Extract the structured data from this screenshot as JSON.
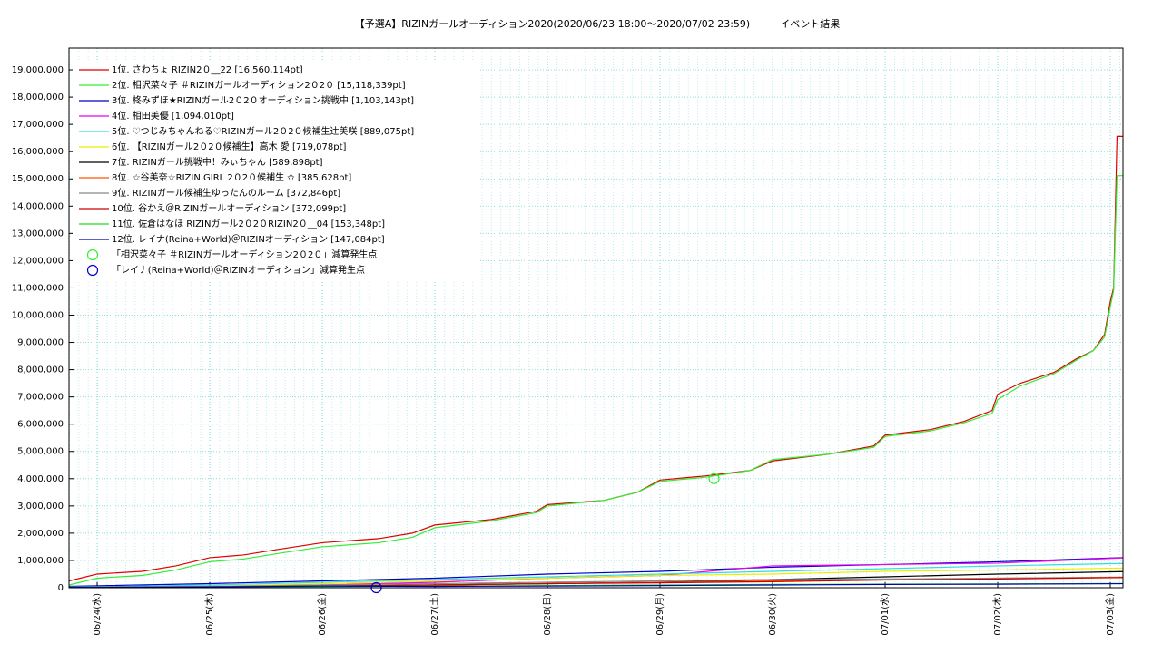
{
  "chart_data": {
    "type": "line",
    "title": "【予選A】RIZINガールオーディション2020(2020/06/23 18:00〜2020/07/02 23:59)　　　イベント結果",
    "xlim": [
      -0.25,
      9.113
    ],
    "xticks": [
      {
        "value": 0,
        "label": "06/24(水)"
      },
      {
        "value": 1,
        "label": "06/25(木)"
      },
      {
        "value": 2,
        "label": "06/26(金)"
      },
      {
        "value": 3,
        "label": "06/27(土)"
      },
      {
        "value": 4,
        "label": "06/28(日)"
      },
      {
        "value": 5,
        "label": "06/29(月)"
      },
      {
        "value": 6,
        "label": "06/30(火)"
      },
      {
        "value": 7,
        "label": "07/01(水)"
      },
      {
        "value": 8,
        "label": "07/02(木)"
      },
      {
        "value": 9,
        "label": "07/03(金)"
      }
    ],
    "ylim": [
      0,
      19800000
    ],
    "yticks": [
      0,
      {
        "value": 1000000,
        "label": "1,000,000"
      },
      {
        "value": 2000000,
        "label": "2,000,000"
      },
      {
        "value": 3000000,
        "label": "3,000,000"
      },
      {
        "value": 4000000,
        "label": "4,000,000"
      },
      {
        "value": 5000000,
        "label": "5,000,000"
      },
      {
        "value": 6000000,
        "label": "6,000,000"
      },
      {
        "value": 7000000,
        "label": "7,000,000"
      },
      {
        "value": 8000000,
        "label": "8,000,000"
      },
      {
        "value": 9000000,
        "label": "9,000,000"
      },
      {
        "value": 10000000,
        "label": "10,000,000"
      },
      {
        "value": 11000000,
        "label": "11,000,000"
      },
      {
        "value": 12000000,
        "label": "12,000,000"
      },
      {
        "value": 13000000,
        "label": "13,000,000"
      },
      {
        "value": 14000000,
        "label": "14,000,000"
      },
      {
        "value": 15000000,
        "label": "15,000,000"
      },
      {
        "value": 16000000,
        "label": "16,000,000"
      },
      {
        "value": 17000000,
        "label": "17,000,000"
      },
      {
        "value": 18000000,
        "label": "18,000,000"
      },
      {
        "value": 19000000,
        "label": "19,000,000"
      }
    ],
    "grid": true,
    "series": [
      {
        "name": "1位. さわちょ RIZIN2０__22 [16,560,114pt]",
        "color": "#dd0000",
        "x": [
          -0.25,
          0,
          0.4,
          0.7,
          1,
          1.3,
          1.6,
          2,
          2.5,
          2.8,
          3,
          3.5,
          3.9,
          4,
          4.5,
          4.8,
          5,
          5.4,
          5.8,
          6,
          6.5,
          6.9,
          7,
          7.4,
          7.7,
          7.95,
          8,
          8.2,
          8.5,
          8.7,
          8.85,
          8.95,
          9,
          9.03,
          9.06,
          9.113
        ],
        "values": [
          250000,
          500000,
          600000,
          800000,
          1100000,
          1200000,
          1400000,
          1650000,
          1800000,
          2000000,
          2300000,
          2500000,
          2800000,
          3050000,
          3200000,
          3500000,
          3950000,
          4100000,
          4300000,
          4650000,
          4900000,
          5200000,
          5600000,
          5800000,
          6100000,
          6500000,
          7100000,
          7500000,
          7900000,
          8400000,
          8700000,
          9300000,
          10500000,
          11000000,
          16560114,
          16560114
        ]
      },
      {
        "name": "2位. 相沢菜々子 ＃RIZINガールオーディション2０2０ [15,118,339pt]",
        "color": "#33ee33",
        "x": [
          -0.25,
          0,
          0.4,
          0.7,
          1,
          1.3,
          1.6,
          2,
          2.5,
          2.8,
          3,
          3.5,
          3.9,
          4,
          4.5,
          4.8,
          5,
          5.4,
          5.8,
          6,
          6.5,
          6.9,
          7,
          7.4,
          7.7,
          7.95,
          8,
          8.2,
          8.5,
          8.7,
          8.85,
          8.95,
          9,
          9.03,
          9.06,
          9.113
        ],
        "values": [
          100000,
          350000,
          450000,
          650000,
          950000,
          1050000,
          1250000,
          1500000,
          1650000,
          1850000,
          2200000,
          2450000,
          2750000,
          3000000,
          3200000,
          3500000,
          3900000,
          4050000,
          4300000,
          4700000,
          4900000,
          5150000,
          5550000,
          5750000,
          6050000,
          6400000,
          6900000,
          7400000,
          7850000,
          8350000,
          8700000,
          9200000,
          10300000,
          10900000,
          15118339,
          15118339
        ]
      },
      {
        "name": "3位. 柊みずほ★RIZINガール2０2０オーディション挑戦中 [1,103,143pt]",
        "color": "#0000cc",
        "x": [
          -0.25,
          1,
          2,
          3,
          4,
          5,
          6,
          7,
          8,
          9.113
        ],
        "values": [
          50000,
          150000,
          250000,
          350000,
          500000,
          600000,
          750000,
          850000,
          950000,
          1103143
        ]
      },
      {
        "name": "4位. 相田美優 [1,094,010pt]",
        "color": "#ee00ee",
        "x": [
          -0.25,
          1,
          2,
          3,
          4,
          5,
          6,
          7,
          8,
          9.113
        ],
        "values": [
          20000,
          50000,
          100000,
          200000,
          350000,
          450000,
          800000,
          850000,
          900000,
          1094010
        ]
      },
      {
        "name": "5位. ♡つじみちゃんねる♡RIZINガール2０2０候補生辻美咲 [889,075pt]",
        "color": "#33dddd",
        "x": [
          -0.25,
          1,
          2,
          3,
          4,
          5,
          6,
          7,
          8,
          9.113
        ],
        "values": [
          20000,
          100000,
          200000,
          300000,
          400000,
          500000,
          600000,
          700000,
          800000,
          889075
        ]
      },
      {
        "name": "6位. 【RIZINガール2０2０候補生】高木 愛 [719,078pt]",
        "color": "#eeee00",
        "x": [
          -0.25,
          1,
          2,
          3,
          4,
          5,
          6,
          7,
          8,
          9.113
        ],
        "values": [
          10000,
          50000,
          150000,
          250000,
          350000,
          450000,
          500000,
          600000,
          650000,
          719078
        ]
      },
      {
        "name": "7位. RIZINガール挑戦中！みぃちゃん [589,898pt]",
        "color": "#000000",
        "x": [
          -0.25,
          1,
          2,
          3,
          4,
          5,
          6,
          7,
          8,
          9.113
        ],
        "values": [
          10000,
          30000,
          60000,
          100000,
          150000,
          200000,
          300000,
          400000,
          500000,
          589898
        ]
      },
      {
        "name": "8位. ☆谷美奈☆RIZIN GIRL 2０2０候補生 ✩ [385,628pt]",
        "color": "#ff5500",
        "x": [
          -0.25,
          1,
          2,
          3,
          4,
          5,
          6,
          7,
          8,
          9.113
        ],
        "values": [
          10000,
          30000,
          60000,
          100000,
          150000,
          200000,
          250000,
          300000,
          350000,
          385628
        ]
      },
      {
        "name": "9位. RIZINガール候補生ゆったんのルーム [372,846pt]",
        "color": "#888888",
        "x": [
          -0.25,
          1,
          2,
          3,
          4,
          5,
          6,
          7,
          8,
          9.113
        ],
        "values": [
          10000,
          50000,
          100000,
          150000,
          200000,
          250000,
          300000,
          320000,
          350000,
          372846
        ]
      },
      {
        "name": "10位. 谷かえ＠RIZINガールオーディション [372,099pt]",
        "color": "#cc0000",
        "x": [
          -0.25,
          1,
          2,
          3,
          4,
          5,
          6,
          7,
          8,
          9.113
        ],
        "values": [
          10000,
          30000,
          60000,
          100000,
          150000,
          180000,
          220000,
          280000,
          320000,
          372099
        ]
      },
      {
        "name": "11位. 佐倉はなほ RIZINガール2０2０RIZIN2０__04 [153,348pt]",
        "color": "#22dd22",
        "x": [
          -0.25,
          1,
          2,
          3,
          4,
          5,
          6,
          7,
          8,
          9.113
        ],
        "values": [
          10000,
          20000,
          40000,
          60000,
          80000,
          100000,
          120000,
          130000,
          140000,
          153348
        ]
      },
      {
        "name": "12位. レイナ(Reina+World)＠RIZINオーディション [147,084pt]",
        "color": "#0000aa",
        "x": [
          -0.25,
          1,
          2,
          3,
          4,
          5,
          6,
          7,
          8,
          9.113
        ],
        "values": [
          10000,
          30000,
          60000,
          50000,
          60000,
          80000,
          100000,
          120000,
          130000,
          147084
        ]
      }
    ],
    "markers": [
      {
        "name": "「相沢菜々子 ＃RIZINガールオーディション2０2０」減算発生点",
        "color": "#33ee33",
        "x": 5.48,
        "y": 4000000
      },
      {
        "name": "「レイナ(Reina+World)＠RIZINオーディション」減算発生点",
        "color": "#0000cc",
        "x": 2.48,
        "y": 0
      }
    ]
  }
}
